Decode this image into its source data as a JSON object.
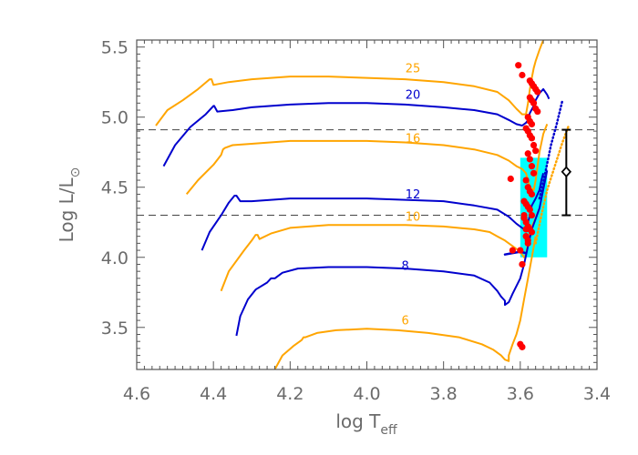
{
  "chart_data": {
    "type": "line",
    "title": "",
    "xlabel": "log T",
    "xlabel_sub": "eff",
    "ylabel": "Log  L/L",
    "ylabel_sub": "⊙",
    "xlim": [
      4.6,
      3.4
    ],
    "ylim": [
      3.2,
      5.55
    ],
    "x_ticks": [
      {
        "v": 4.6,
        "label": "4.6"
      },
      {
        "v": 4.4,
        "label": "4.4"
      },
      {
        "v": 4.2,
        "label": "4.2"
      },
      {
        "v": 4.0,
        "label": "4.0"
      },
      {
        "v": 3.8,
        "label": "3.8"
      },
      {
        "v": 3.6,
        "label": "3.6"
      },
      {
        "v": 3.4,
        "label": "3.4"
      }
    ],
    "y_ticks": [
      {
        "v": 3.5,
        "label": "3.5"
      },
      {
        "v": 4.0,
        "label": "4.0"
      },
      {
        "v": 4.5,
        "label": "4.5"
      },
      {
        "v": 5.0,
        "label": "5.0"
      },
      {
        "v": 5.5,
        "label": "5.5"
      }
    ],
    "colors": {
      "orange": "#FFA500",
      "blue": "#0000CD",
      "red": "#FF0000",
      "cyan": "#00FFFF",
      "black": "#000000",
      "axis": "#555555"
    },
    "hlines": [
      4.91,
      4.3
    ],
    "box": {
      "x": [
        3.6,
        3.53
      ],
      "y": [
        4.0,
        4.71
      ]
    },
    "series": [
      {
        "label": "25",
        "color": "orange",
        "label_at": [
          3.88,
          5.32
        ],
        "x": [
          4.55,
          4.52,
          4.48,
          4.44,
          4.41,
          4.405,
          4.4,
          4.36,
          4.3,
          4.2,
          4.1,
          4.0,
          3.9,
          3.8,
          3.72,
          3.66,
          3.63,
          3.61,
          3.595,
          3.585,
          3.58,
          3.575,
          3.57,
          3.565,
          3.56,
          3.55,
          3.54
        ],
        "y": [
          4.94,
          5.05,
          5.12,
          5.2,
          5.27,
          5.27,
          5.23,
          5.25,
          5.27,
          5.29,
          5.29,
          5.28,
          5.27,
          5.25,
          5.22,
          5.18,
          5.12,
          5.06,
          5.02,
          5.02,
          5.1,
          5.2,
          5.28,
          5.35,
          5.4,
          5.48,
          5.55
        ]
      },
      {
        "label": "20",
        "color": "blue",
        "label_at": [
          3.88,
          5.13
        ],
        "x": [
          4.53,
          4.5,
          4.46,
          4.42,
          4.4,
          4.398,
          4.39,
          4.35,
          4.3,
          4.2,
          4.1,
          4.0,
          3.9,
          3.8,
          3.72,
          3.66,
          3.63,
          3.61,
          3.595,
          3.585,
          3.58,
          3.575,
          3.565,
          3.56,
          3.55,
          3.54,
          3.53,
          3.525
        ],
        "y": [
          4.65,
          4.8,
          4.93,
          5.02,
          5.08,
          5.08,
          5.04,
          5.05,
          5.07,
          5.09,
          5.1,
          5.1,
          5.09,
          5.07,
          5.05,
          5.02,
          4.98,
          4.95,
          4.94,
          4.96,
          4.98,
          5.03,
          5.08,
          5.12,
          5.17,
          5.2,
          5.16,
          5.13
        ]
      },
      {
        "label": "16",
        "color": "orange",
        "label_at": [
          3.88,
          4.82
        ],
        "x": [
          4.47,
          4.44,
          4.4,
          4.38,
          4.375,
          4.37,
          4.35,
          4.3,
          4.2,
          4.1,
          4.0,
          3.9,
          3.8,
          3.72,
          3.66,
          3.63,
          3.61,
          3.595,
          3.585,
          3.58,
          3.575,
          3.565,
          3.56,
          3.55,
          3.54,
          3.53
        ],
        "y": [
          4.45,
          4.55,
          4.66,
          4.73,
          4.77,
          4.78,
          4.8,
          4.81,
          4.83,
          4.83,
          4.83,
          4.82,
          4.8,
          4.77,
          4.73,
          4.69,
          4.65,
          4.63,
          4.6,
          4.55,
          4.5,
          4.48,
          4.55,
          4.75,
          4.88,
          4.95
        ]
      },
      {
        "label": "12",
        "color": "blue",
        "label_at": [
          3.88,
          4.42
        ],
        "x": [
          4.43,
          4.41,
          4.38,
          4.36,
          4.345,
          4.34,
          4.33,
          4.3,
          4.25,
          4.2,
          4.1,
          4.0,
          3.9,
          3.8,
          3.72,
          3.66,
          3.63,
          3.61,
          3.6,
          3.59,
          3.58,
          3.575,
          3.57,
          3.56,
          3.55,
          3.545,
          3.54
        ],
        "y": [
          4.05,
          4.18,
          4.3,
          4.39,
          4.44,
          4.44,
          4.4,
          4.4,
          4.41,
          4.42,
          4.42,
          4.42,
          4.41,
          4.4,
          4.37,
          4.34,
          4.29,
          4.24,
          4.22,
          4.2,
          4.25,
          4.3,
          4.37,
          4.42,
          4.48,
          4.55,
          4.6
        ]
      },
      {
        "label": "10",
        "color": "orange",
        "label_at": [
          3.88,
          4.26
        ],
        "x": [
          4.38,
          4.36,
          4.32,
          4.3,
          4.29,
          4.285,
          4.28,
          4.25,
          4.2,
          4.1,
          4.0,
          3.9,
          3.8,
          3.72,
          3.68,
          3.66,
          3.64,
          3.62,
          3.6,
          3.59,
          3.585,
          3.58,
          3.575,
          3.57,
          3.56,
          3.55
        ],
        "y": [
          3.76,
          3.9,
          4.05,
          4.12,
          4.16,
          4.16,
          4.13,
          4.17,
          4.21,
          4.23,
          4.23,
          4.23,
          4.22,
          4.2,
          4.18,
          4.15,
          4.12,
          4.08,
          4.04,
          4.0,
          4.02,
          4.1,
          4.18,
          4.22,
          4.28,
          4.35
        ]
      },
      {
        "label": "8",
        "color": "blue",
        "label_at": [
          3.9,
          3.91
        ],
        "x": [
          4.34,
          4.33,
          4.31,
          4.29,
          4.26,
          4.25,
          4.24,
          4.22,
          4.18,
          4.1,
          4.0,
          3.9,
          3.8,
          3.72,
          3.68,
          3.66,
          3.65,
          3.64,
          3.64,
          3.63,
          3.62,
          3.6,
          3.59,
          3.58,
          3.57,
          3.55,
          3.53
        ],
        "y": [
          3.44,
          3.58,
          3.7,
          3.77,
          3.82,
          3.85,
          3.85,
          3.89,
          3.92,
          3.93,
          3.93,
          3.92,
          3.9,
          3.87,
          3.82,
          3.76,
          3.72,
          3.69,
          3.66,
          3.68,
          3.74,
          3.85,
          3.95,
          4.08,
          4.2,
          4.35,
          4.62
        ]
      },
      {
        "label": "6",
        "color": "orange",
        "label_at": [
          3.9,
          3.52
        ],
        "x": [
          4.24,
          4.22,
          4.19,
          4.17,
          4.165,
          4.16,
          4.13,
          4.08,
          4.0,
          3.92,
          3.84,
          3.76,
          3.7,
          3.67,
          3.65,
          3.64,
          3.63,
          3.63,
          3.62,
          3.61,
          3.6,
          3.59,
          3.58,
          3.57,
          3.56
        ],
        "y": [
          3.2,
          3.3,
          3.37,
          3.41,
          3.43,
          3.43,
          3.46,
          3.48,
          3.49,
          3.48,
          3.46,
          3.43,
          3.38,
          3.34,
          3.3,
          3.27,
          3.26,
          3.3,
          3.38,
          3.45,
          3.55,
          3.7,
          3.85,
          4.0,
          4.15
        ]
      }
    ],
    "extra_lines": [
      {
        "color": "blue",
        "dash": "1,3",
        "x": [
          3.55,
          3.535,
          3.52,
          3.505,
          3.49
        ],
        "y": [
          4.42,
          4.6,
          4.8,
          4.95,
          5.12
        ]
      },
      {
        "color": "orange",
        "dash": "1,3",
        "x": [
          3.56,
          3.545,
          3.53,
          3.51,
          3.49,
          3.475
        ],
        "y": [
          4.1,
          4.3,
          4.48,
          4.65,
          4.82,
          4.93
        ]
      },
      {
        "color": "blue",
        "dash": "",
        "x": [
          3.64,
          3.62,
          3.6,
          3.585
        ],
        "y": [
          4.02,
          4.03,
          4.04,
          4.03
        ]
      }
    ],
    "red_points": {
      "x": [
        3.605,
        3.595,
        3.575,
        3.57,
        3.565,
        3.56,
        3.555,
        3.575,
        3.57,
        3.565,
        3.56,
        3.555,
        3.58,
        3.575,
        3.57,
        3.585,
        3.58,
        3.575,
        3.57,
        3.565,
        3.56,
        3.58,
        3.575,
        3.57,
        3.565,
        3.585,
        3.58,
        3.575,
        3.57,
        3.59,
        3.585,
        3.58,
        3.575,
        3.57,
        3.59,
        3.585,
        3.58,
        3.575,
        3.57,
        3.585,
        3.58,
        3.59,
        3.585,
        3.58,
        3.6,
        3.595,
        3.625,
        3.62,
        3.6,
        3.595
      ],
      "y": [
        5.37,
        5.3,
        5.26,
        5.24,
        5.22,
        5.2,
        5.18,
        5.14,
        5.12,
        5.1,
        5.06,
        5.04,
        5.0,
        4.97,
        4.95,
        4.92,
        4.9,
        4.87,
        4.85,
        4.8,
        4.76,
        4.74,
        4.7,
        4.65,
        4.6,
        4.55,
        4.5,
        4.47,
        4.45,
        4.4,
        4.38,
        4.36,
        4.34,
        4.3,
        4.28,
        4.25,
        4.22,
        4.2,
        4.18,
        4.15,
        4.12,
        4.3,
        4.2,
        4.1,
        4.05,
        3.95,
        4.56,
        4.05,
        3.38,
        3.36
      ]
    },
    "observation": {
      "x": 3.48,
      "y": 4.61,
      "y_err": [
        4.3,
        4.91
      ]
    }
  }
}
